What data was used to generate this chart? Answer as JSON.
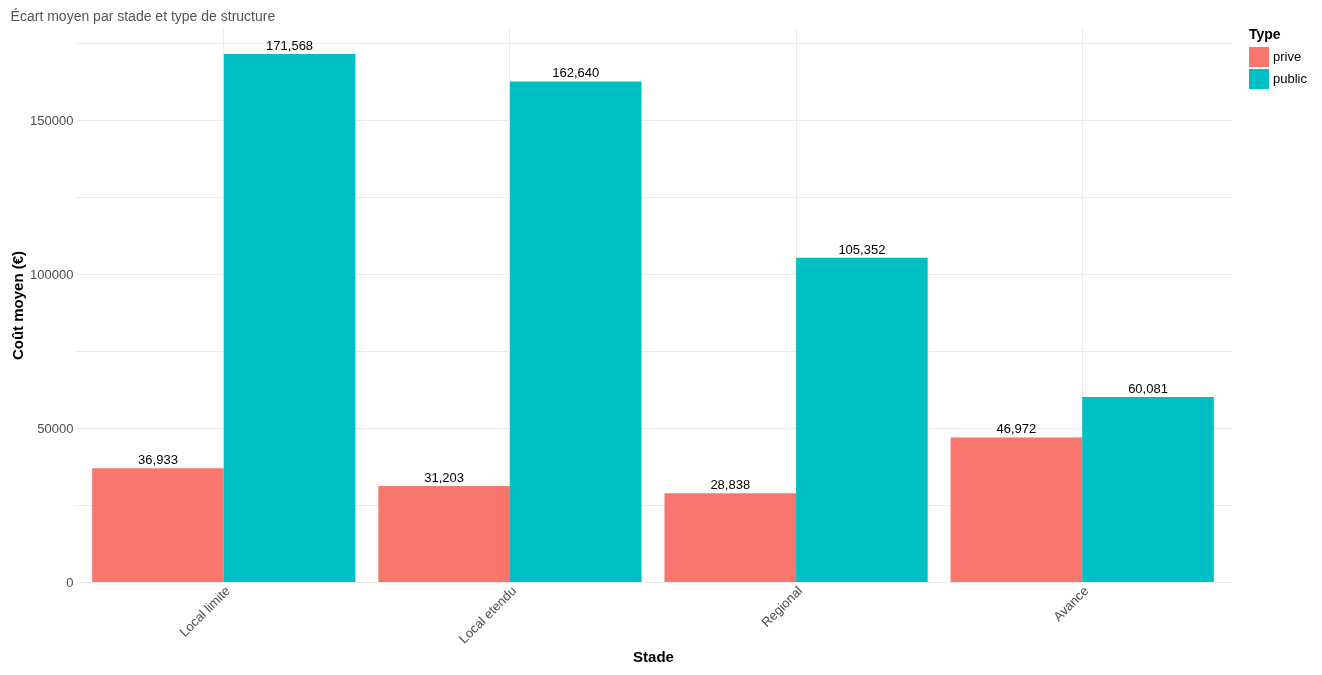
{
  "chart_data": {
    "type": "bar",
    "title": "Écart moyen par stade et type de structure",
    "xlabel": "Stade",
    "ylabel": "Coût moyen (€)",
    "legend_title": "Type",
    "categories": [
      "Local limite",
      "Local etendu",
      "Regional",
      "Avance"
    ],
    "series": [
      {
        "name": "prive",
        "color": "#f8766d",
        "values": [
          36933,
          31203,
          28838,
          46972
        ],
        "value_labels": [
          "36,933",
          "31,203",
          "28,838",
          "46,972"
        ]
      },
      {
        "name": "public",
        "color": "#00bfc4",
        "values": [
          171568,
          162640,
          105352,
          60081
        ],
        "value_labels": [
          "171,568",
          "162,640",
          "105,352",
          "60,081"
        ]
      }
    ],
    "ylim": [
      0,
      180000
    ],
    "yticks": [
      0,
      {
        "value": 25000,
        "label": null
      },
      50000,
      {
        "value": 75000,
        "label": null
      },
      100000,
      {
        "value": 125000,
        "label": null
      },
      150000,
      {
        "value": 175000,
        "label": null
      }
    ],
    "grid": true,
    "legend": "right"
  }
}
